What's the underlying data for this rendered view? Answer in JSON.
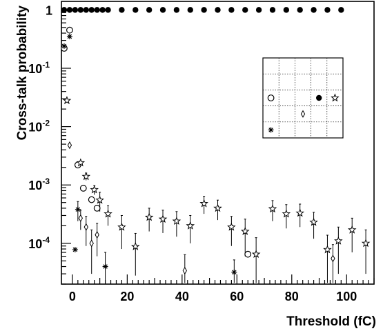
{
  "chart_data": {
    "type": "scatter",
    "xlabel": "Threshold (fC)",
    "ylabel": "Cross-talk probability",
    "x_scale": "linear",
    "y_scale": "log",
    "xlim": [
      -4,
      110
    ],
    "ylim": [
      2e-05,
      1.4
    ],
    "x_ticks": [
      0,
      20,
      40,
      60,
      80,
      100
    ],
    "y_ticks": [
      {
        "value": 1,
        "base": "1",
        "exp": ""
      },
      {
        "value": 0.1,
        "base": "10",
        "exp": "-1"
      },
      {
        "value": 0.01,
        "base": "10",
        "exp": "-2"
      },
      {
        "value": 0.001,
        "base": "10",
        "exp": "-3"
      },
      {
        "value": 0.0001,
        "base": "10",
        "exp": "-4"
      }
    ],
    "grid": false,
    "series": [
      {
        "marker": "filled-circle",
        "points": [
          {
            "x": -3,
            "y": 1
          },
          {
            "x": -1,
            "y": 1
          },
          {
            "x": 1,
            "y": 1
          },
          {
            "x": 3,
            "y": 1
          },
          {
            "x": 5,
            "y": 1
          },
          {
            "x": 7,
            "y": 1
          },
          {
            "x": 9,
            "y": 1
          },
          {
            "x": 11,
            "y": 1
          },
          {
            "x": 13,
            "y": 1
          },
          {
            "x": 18,
            "y": 1
          },
          {
            "x": 23,
            "y": 1
          },
          {
            "x": 28,
            "y": 1
          },
          {
            "x": 33,
            "y": 1
          },
          {
            "x": 38,
            "y": 1
          },
          {
            "x": 43,
            "y": 1
          },
          {
            "x": 48,
            "y": 1
          },
          {
            "x": 53,
            "y": 1
          },
          {
            "x": 58,
            "y": 1
          },
          {
            "x": 63,
            "y": 1
          },
          {
            "x": 68,
            "y": 1
          },
          {
            "x": 73,
            "y": 1
          },
          {
            "x": 78,
            "y": 1
          },
          {
            "x": 83,
            "y": 1
          },
          {
            "x": 88,
            "y": 1
          },
          {
            "x": 93,
            "y": 1
          },
          {
            "x": 98,
            "y": 1
          }
        ]
      },
      {
        "marker": "open-circle",
        "points": [
          {
            "x": -3,
            "y": 0.22
          },
          {
            "x": -1,
            "y": 0.45
          },
          {
            "x": 2,
            "y": 0.0022
          },
          {
            "x": 4,
            "y": 0.00088
          },
          {
            "x": 7,
            "y": 0.00056
          },
          {
            "x": 9,
            "y": 0.0004
          },
          {
            "x": 64,
            "y": 6.5e-05
          }
        ]
      },
      {
        "marker": "star",
        "points": [
          {
            "x": -2,
            "y": 0.028,
            "err": 0
          },
          {
            "x": 3,
            "y": 0.0024,
            "err": 0
          },
          {
            "x": 5,
            "y": 0.0014,
            "err": 0.0002
          },
          {
            "x": 8,
            "y": 0.00083,
            "err": 0.00015
          },
          {
            "x": 10,
            "y": 0.00055,
            "err": 0.0002
          },
          {
            "x": 13,
            "y": 0.00032,
            "err": 0.00012
          },
          {
            "x": 18,
            "y": 0.00019,
            "err": 0.00011
          },
          {
            "x": 23,
            "y": 8.8e-05,
            "err": 6e-05
          },
          {
            "x": 28,
            "y": 0.00028,
            "err": 0.00012
          },
          {
            "x": 33,
            "y": 0.00026,
            "err": 0.00011
          },
          {
            "x": 38,
            "y": 0.00024,
            "err": 0.00011
          },
          {
            "x": 43,
            "y": 0.0002,
            "err": 0.0001
          },
          {
            "x": 48,
            "y": 0.00048,
            "err": 0.00016
          },
          {
            "x": 53,
            "y": 0.0004,
            "err": 0.00015
          },
          {
            "x": 58,
            "y": 0.00019,
            "err": 0.0001
          },
          {
            "x": 63,
            "y": 0.00016,
            "err": 0.0001
          },
          {
            "x": 67,
            "y": 6.5e-05,
            "err": 6e-05
          },
          {
            "x": 73,
            "y": 0.00039,
            "err": 0.00015
          },
          {
            "x": 78,
            "y": 0.00032,
            "err": 0.00014
          },
          {
            "x": 83,
            "y": 0.00033,
            "err": 0.00014
          },
          {
            "x": 88,
            "y": 0.00023,
            "err": 0.00011
          },
          {
            "x": 93,
            "y": 7.8e-05,
            "err": 6e-05
          },
          {
            "x": 97,
            "y": 0.00011,
            "err": 8e-05
          },
          {
            "x": 102,
            "y": 0.00017,
            "err": 0.0001
          },
          {
            "x": 107,
            "y": 0.0001,
            "err": 7e-05
          }
        ]
      },
      {
        "marker": "diamond",
        "points": [
          {
            "x": -1,
            "y": 0.0048,
            "err": 0
          },
          {
            "x": 3,
            "y": 0.00027,
            "err": 0.0001
          },
          {
            "x": 5,
            "y": 0.00019,
            "err": 0.0001
          },
          {
            "x": 7,
            "y": 0.0001,
            "err": 7e-05
          },
          {
            "x": 9,
            "y": 0.00014,
            "err": 8e-05
          },
          {
            "x": 41,
            "y": 3.4e-05,
            "err": 3e-05
          },
          {
            "x": 95,
            "y": 5.5e-05,
            "err": 4e-05
          }
        ]
      },
      {
        "marker": "asterisk",
        "points": [
          {
            "x": -3,
            "y": 0.24,
            "err": 0
          },
          {
            "x": -1,
            "y": 0.35,
            "err": 0
          },
          {
            "x": 1,
            "y": 7.8e-05,
            "err": 0
          },
          {
            "x": 2,
            "y": 0.00038,
            "err": 0.00014
          },
          {
            "x": 12,
            "y": 4e-05,
            "err": 3e-05
          },
          {
            "x": 59,
            "y": 3.2e-05,
            "err": 2e-05
          }
        ]
      }
    ],
    "legend": {
      "placement": "top-right",
      "grid": 5,
      "cells": [
        {
          "col": 0,
          "row": 2,
          "marker": "open-circle"
        },
        {
          "col": 3,
          "row": 2,
          "marker": "filled-circle"
        },
        {
          "col": 4,
          "row": 2,
          "marker": "star"
        },
        {
          "col": 2,
          "row": 3,
          "marker": "diamond"
        },
        {
          "col": 0,
          "row": 4,
          "marker": "asterisk"
        }
      ]
    }
  }
}
